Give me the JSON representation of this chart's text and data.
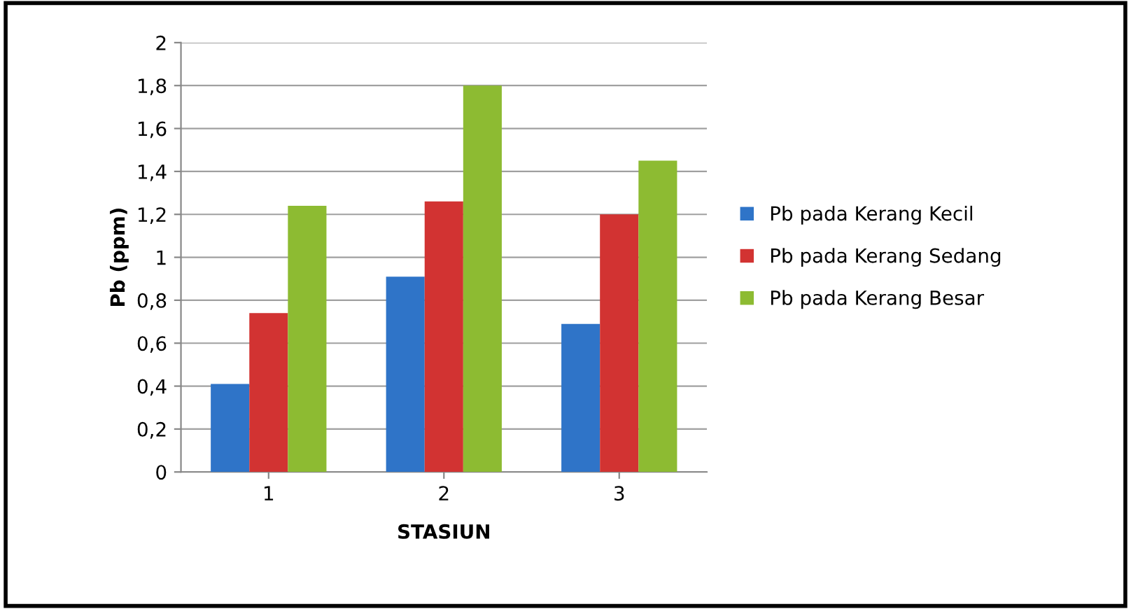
{
  "chart_data": {
    "type": "bar",
    "xlabel": "STASIUN",
    "ylabel": "Pb (ppm)",
    "categories": [
      "1",
      "2",
      "3"
    ],
    "series": [
      {
        "name": "Pb pada Kerang Kecil",
        "color": "#2f74c8",
        "values": [
          0.41,
          0.91,
          0.69
        ]
      },
      {
        "name": "Pb pada Kerang Sedang",
        "color": "#d23332",
        "values": [
          0.74,
          1.26,
          1.2
        ]
      },
      {
        "name": "Pb pada Kerang Besar",
        "color": "#8dbb32",
        "values": [
          1.24,
          1.8,
          1.45
        ]
      }
    ],
    "ylim": [
      0,
      2
    ],
    "yticks": [
      0,
      {
        "value": 0.2,
        "label": "0,2"
      },
      {
        "value": 0.4,
        "label": "0,4"
      },
      {
        "value": 0.6,
        "label": "0,6"
      },
      {
        "value": 0.8,
        "label": "0,8"
      },
      1,
      {
        "value": 1.2,
        "label": "1,2"
      },
      {
        "value": 1.4,
        "label": "1,4"
      },
      {
        "value": 1.6,
        "label": "1,6"
      },
      {
        "value": 1.8,
        "label": "1,8"
      },
      2
    ],
    "grid": "y",
    "legend": "right"
  }
}
